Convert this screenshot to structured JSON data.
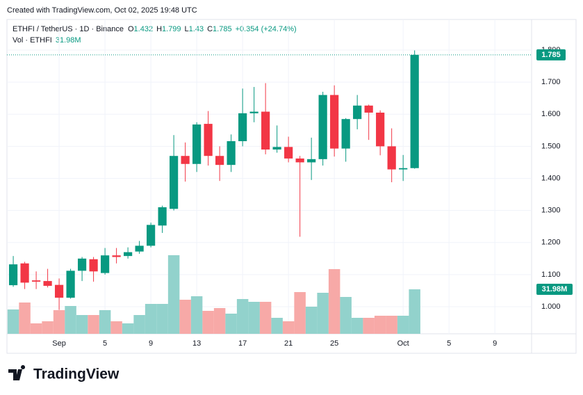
{
  "header": {
    "created": "Created with TradingView.com, Oct 02, 2025 19:48 UTC"
  },
  "legend": {
    "symbol": "ETHFI / TetherUS · 1D · Binance",
    "ohlc_letters": [
      "O",
      "H",
      "L",
      "C"
    ],
    "change": "+0.354 (+24.74%)",
    "volume_name": "Vol · ETHFI"
  },
  "logo": "TradingView",
  "chart_data": {
    "type": "candlestick",
    "open": [
      1.067,
      1.135,
      1.082,
      1.08,
      1.068,
      1.028,
      1.112,
      1.148,
      1.105,
      1.16,
      1.158,
      1.172,
      1.19,
      1.253,
      1.305,
      1.47,
      1.445,
      1.57,
      1.47,
      1.442,
      1.516,
      1.603,
      1.608,
      1.49,
      1.498,
      1.462,
      1.45,
      1.46,
      1.66,
      1.493,
      1.585,
      1.627,
      1.605,
      1.5,
      1.428,
      1.432
    ],
    "high": [
      1.158,
      1.14,
      1.11,
      1.118,
      1.088,
      1.118,
      1.155,
      1.155,
      1.183,
      1.183,
      1.185,
      1.205,
      1.262,
      1.315,
      1.535,
      1.512,
      1.575,
      1.61,
      1.5,
      1.537,
      1.68,
      1.685,
      1.697,
      1.565,
      1.53,
      1.47,
      1.527,
      1.67,
      1.69,
      1.588,
      1.66,
      1.63,
      1.612,
      1.556,
      1.473,
      1.799
    ],
    "low": [
      1.062,
      1.055,
      1.055,
      1.06,
      0.99,
      1.025,
      1.08,
      1.078,
      1.1,
      1.135,
      1.15,
      1.165,
      1.185,
      1.23,
      1.3,
      1.39,
      1.42,
      1.44,
      1.392,
      1.42,
      1.5,
      1.575,
      1.475,
      1.48,
      1.45,
      1.218,
      1.395,
      1.44,
      1.468,
      1.452,
      1.553,
      1.52,
      1.472,
      1.388,
      1.392,
      1.43
    ],
    "close": [
      1.132,
      1.075,
      1.078,
      1.065,
      1.028,
      1.112,
      1.15,
      1.11,
      1.16,
      1.155,
      1.17,
      1.19,
      1.255,
      1.31,
      1.47,
      1.445,
      1.568,
      1.47,
      1.442,
      1.516,
      1.603,
      1.608,
      1.49,
      1.498,
      1.462,
      1.45,
      1.46,
      1.66,
      1.493,
      1.585,
      1.627,
      1.605,
      1.5,
      1.428,
      1.432,
      1.785
    ],
    "volume": {
      "values": [
        17.5,
        22.5,
        7.5,
        9,
        17,
        20,
        13.5,
        13.5,
        17,
        9,
        7.5,
        13.5,
        21.5,
        21.5,
        56.5,
        24.5,
        27,
        16.5,
        18.5,
        14.5,
        25,
        23,
        23,
        11.5,
        9,
        30,
        19.5,
        29.5,
        46.5,
        26.5,
        11.5,
        11.5,
        13,
        13,
        13,
        31.98
      ],
      "value_labels": [
        null,
        null,
        null,
        null,
        null,
        null,
        null,
        null,
        null,
        null,
        null,
        null,
        null,
        null,
        null,
        null,
        null,
        null,
        null,
        null,
        null,
        null,
        null,
        null,
        null,
        null,
        null,
        null,
        null,
        null,
        null,
        null,
        null,
        null,
        null,
        "31.98M"
      ],
      "axis": "y2",
      "up_color": "#92d2cc",
      "down_color": "#f7a9a7"
    },
    "up_color": "#089981",
    "down_color": "#f23645",
    "xlim": [
      -0.55,
      45.2
    ],
    "xticks": [
      {
        "value": 4,
        "label": "Sep"
      },
      {
        "value": 8,
        "label": "5"
      },
      {
        "value": 12,
        "label": "9"
      },
      {
        "value": 16,
        "label": "13"
      },
      {
        "value": 20,
        "label": "17"
      },
      {
        "value": 24,
        "label": "21"
      },
      {
        "value": 28,
        "label": "25"
      },
      {
        "value": 34,
        "label": "Oct"
      },
      {
        "value": 38,
        "label": "5"
      },
      {
        "value": 42,
        "label": "9"
      }
    ],
    "ylim": [
      0.9155,
      1.8954
    ],
    "yticks": [
      {
        "value": 1,
        "label": "1.000"
      },
      {
        "value": 1.1,
        "label": "1.100"
      },
      {
        "value": 1.2,
        "label": "1.200"
      },
      {
        "value": 1.3,
        "label": "1.300"
      },
      {
        "value": 1.4,
        "label": "1.400"
      },
      {
        "value": 1.5,
        "label": "1.500"
      },
      {
        "value": 1.6,
        "label": "1.600"
      },
      {
        "value": 1.7,
        "label": "1.700"
      },
      {
        "value": 1.8,
        "label": "1.800"
      }
    ],
    "y2lim": [
      0,
      226
    ],
    "grid": true
  }
}
